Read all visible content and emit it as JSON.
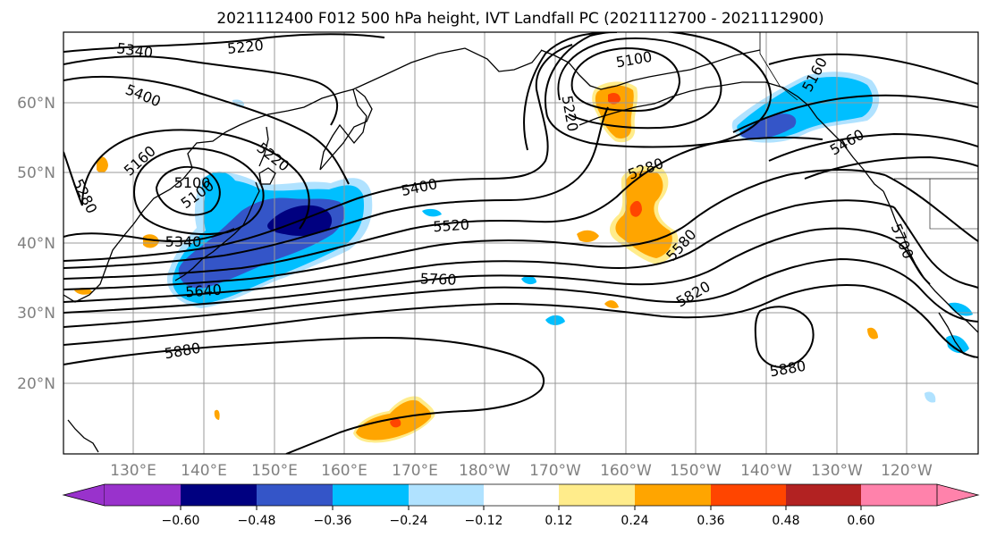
{
  "title": "2021112400 F012 500 hPa height, IVT Landfall PC (2021112700 - 2021112900)",
  "map": {
    "lat_labels": [
      "60°N",
      "50°N",
      "40°N",
      "30°N",
      "20°N"
    ],
    "lon_labels": [
      "130°E",
      "140°E",
      "150°E",
      "160°E",
      "170°E",
      "180°W",
      "170°W",
      "160°W",
      "150°W",
      "140°W",
      "130°W",
      "120°W"
    ],
    "contour_labels": [
      "5340",
      "5220",
      "5400",
      "5220",
      "5100",
      "5280",
      "5160",
      "5100",
      "5340",
      "5400",
      "5520",
      "5640",
      "5760",
      "5880",
      "5220",
      "5100",
      "5280",
      "5580",
      "5820",
      "5880",
      "5160",
      "5460",
      "5700"
    ],
    "axis_color": "#808080"
  },
  "colorbar": {
    "ticks": [
      "−0.60",
      "−0.48",
      "−0.36",
      "−0.24",
      "−0.12",
      "0.12",
      "0.24",
      "0.36",
      "0.48",
      "0.60"
    ],
    "colors": [
      "#9932cc",
      "#000080",
      "#3455c8",
      "#00bfff",
      "#b0e2ff",
      "#ffffff",
      "#ffec8b",
      "#ffa500",
      "#ff4500",
      "#b22222",
      "#ff82ab"
    ],
    "extend": "both"
  },
  "fills": {
    "neg_light": "#b0e2ff",
    "neg_med": "#00bfff",
    "neg_strong": "#3455c8",
    "neg_max": "#000080",
    "pos_light": "#ffec8b",
    "pos_med": "#ffa500",
    "pos_strong": "#ff4500"
  }
}
